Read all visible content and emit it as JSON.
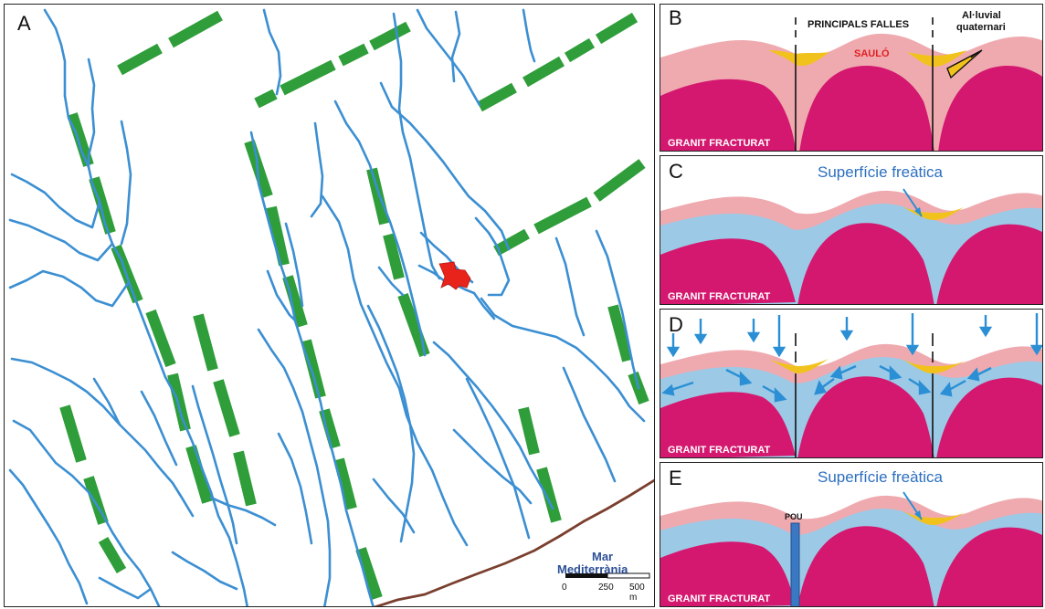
{
  "panels": {
    "a": {
      "letter": "A"
    },
    "b": {
      "letter": "B",
      "faults_label": "PRINCIPALS FALLES",
      "alluvial_label_1": "Al·luvial",
      "alluvial_label_2": "quaternari",
      "saulo_label": "SAULÓ",
      "granite_label": "GRANIT FRACTURAT"
    },
    "c": {
      "letter": "C",
      "water_table_label": "Superfície freàtica",
      "granite_label": "GRANIT FRACTURAT"
    },
    "d": {
      "letter": "D",
      "granite_label": "GRANIT FRACTURAT"
    },
    "e": {
      "letter": "E",
      "water_table_label": "Superfície freàtica",
      "well_label": "POU",
      "granite_label": "GRANIT FRACTURAT"
    }
  },
  "map": {
    "sea_label_1": "Mar",
    "sea_label_2": "Mediterrània",
    "scale_ticks": [
      "0",
      "250",
      "500 m"
    ]
  },
  "colors": {
    "stream": "#3b8fd2",
    "fault": "#2f9e3a",
    "coast": "#7a3f2e",
    "village": "#e8231b",
    "granite": "#d4186f",
    "saulo": "#efaab0",
    "alluvium": "#f2c21c",
    "groundwater": "#9cc9e6",
    "arrow": "#2a8fd4",
    "sea_label": "#2c4f96"
  }
}
